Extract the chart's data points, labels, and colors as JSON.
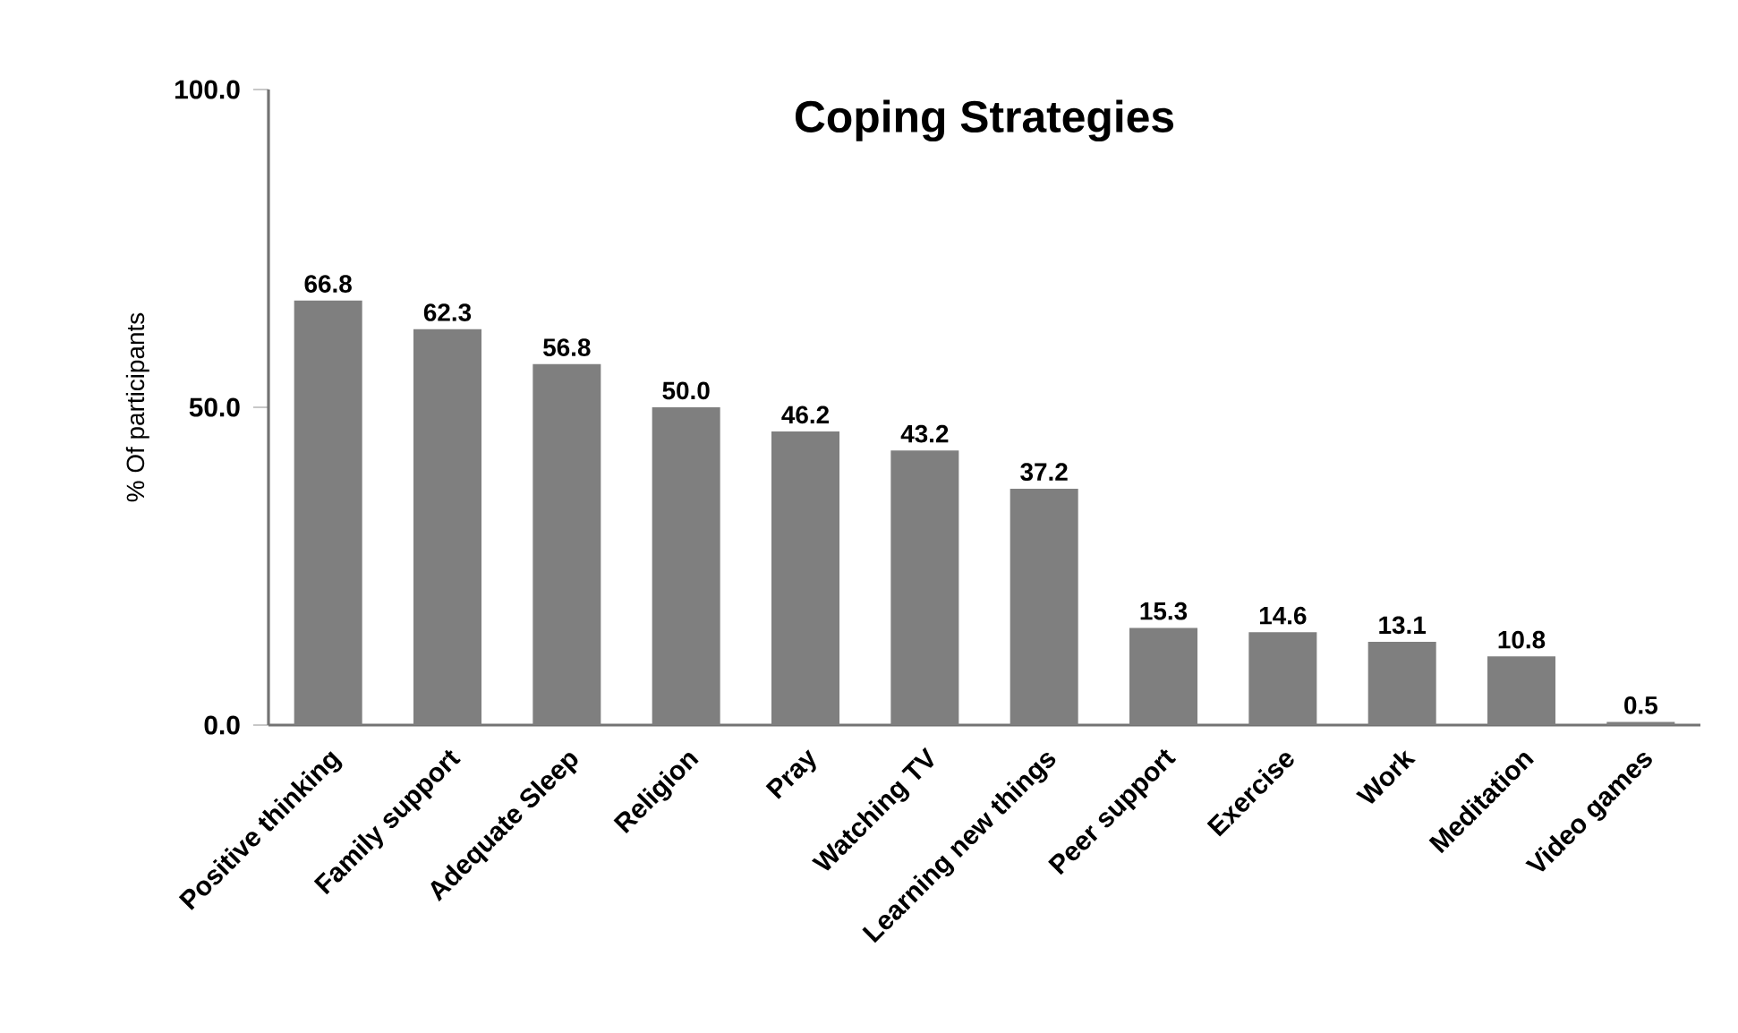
{
  "chart_data": {
    "type": "bar",
    "title": "Coping Strategies",
    "ylabel": "% Of participants",
    "categories": [
      "Positive thinking",
      "Family support",
      "Adequate Sleep",
      "Religion",
      "Pray",
      "Watching TV",
      "Learning new things",
      "Peer support",
      "Exercise",
      "Work",
      "Meditation",
      "Video games"
    ],
    "values": [
      66.8,
      62.3,
      56.8,
      50.0,
      46.2,
      43.2,
      37.2,
      15.3,
      14.6,
      13.1,
      10.8,
      0.5
    ],
    "value_labels": [
      "66.8",
      "62.3",
      "56.8",
      "50.0",
      "46.2",
      "43.2",
      "37.2",
      "15.3",
      "14.6",
      "13.1",
      "10.8",
      "0.5"
    ],
    "color": "#7f7f7f",
    "ylim": [
      0,
      100
    ],
    "yticks": [
      {
        "value": 0,
        "label": "0.0"
      },
      {
        "value": 50,
        "label": "50.0"
      },
      {
        "value": 100,
        "label": "100.0"
      }
    ]
  }
}
